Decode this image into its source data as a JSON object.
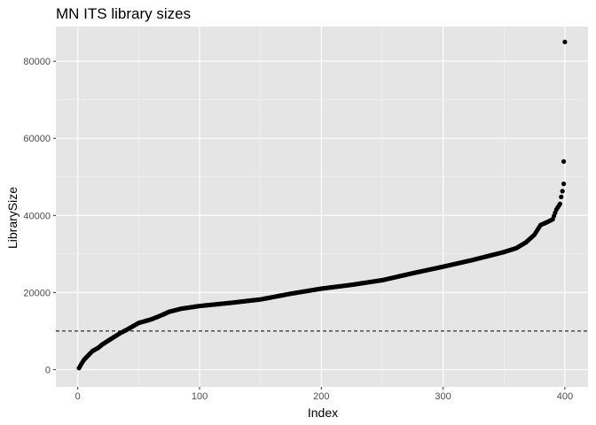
{
  "chart_data": {
    "type": "scatter",
    "title": "MN ITS library sizes",
    "xlabel": "Index",
    "ylabel": "LibrarySize",
    "xlim": [
      -18,
      419
    ],
    "ylim": [
      -4500,
      89000
    ],
    "x_ticks": [
      0,
      100,
      200,
      300,
      400
    ],
    "y_ticks": [
      0,
      20000,
      40000,
      60000,
      80000
    ],
    "x_tick_labels": [
      "0",
      "100",
      "200",
      "300",
      "400"
    ],
    "y_tick_labels": [
      "0",
      "20000",
      "40000",
      "60000",
      "80000"
    ],
    "x_minor": [
      50,
      150,
      250,
      350
    ],
    "y_minor": [
      10000,
      30000,
      50000,
      70000
    ],
    "grid": true,
    "n_points": 400,
    "curve_knots": [
      [
        1,
        400
      ],
      [
        3,
        1500
      ],
      [
        5,
        2500
      ],
      [
        8,
        3500
      ],
      [
        12,
        4800
      ],
      [
        17,
        5700
      ],
      [
        20,
        6500
      ],
      [
        25,
        7500
      ],
      [
        30,
        8500
      ],
      [
        35,
        9500
      ],
      [
        40,
        10300
      ],
      [
        45,
        11200
      ],
      [
        50,
        12100
      ],
      [
        60,
        13000
      ],
      [
        68,
        14000
      ],
      [
        75,
        15000
      ],
      [
        85,
        15800
      ],
      [
        100,
        16500
      ],
      [
        125,
        17300
      ],
      [
        150,
        18200
      ],
      [
        175,
        19700
      ],
      [
        200,
        21000
      ],
      [
        225,
        22000
      ],
      [
        250,
        23200
      ],
      [
        275,
        25000
      ],
      [
        300,
        26700
      ],
      [
        325,
        28500
      ],
      [
        350,
        30500
      ],
      [
        360,
        31500
      ],
      [
        368,
        33000
      ],
      [
        375,
        35000
      ],
      [
        380,
        37500
      ],
      [
        385,
        38200
      ],
      [
        390,
        39000
      ],
      [
        393,
        41500
      ],
      [
        396,
        43000
      ],
      [
        397,
        44800
      ],
      [
        398,
        46300
      ],
      [
        399,
        48200
      ]
    ],
    "outliers": [
      [
        399,
        54000
      ],
      [
        400,
        85000
      ]
    ],
    "threshold_line": {
      "y": 10000,
      "style": "dashed"
    },
    "colors": {
      "panel": "#e5e5e5",
      "grid_major": "#ffffff",
      "grid_minor": "#f2f2f2",
      "point": "#000000",
      "threshold": "#000000"
    }
  }
}
